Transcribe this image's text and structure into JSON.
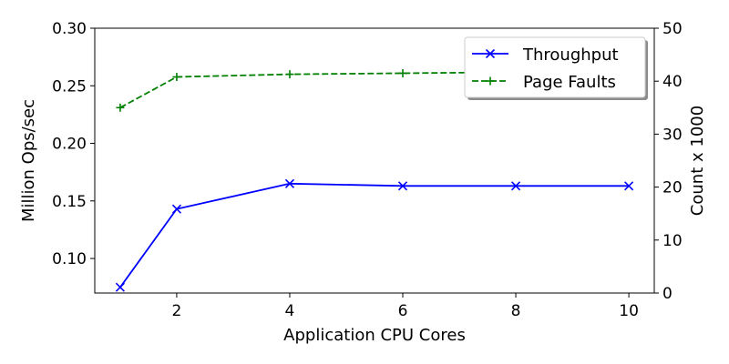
{
  "chart_data": {
    "type": "line",
    "x": [
      1,
      2,
      4,
      6,
      8,
      10
    ],
    "xlabel": "Application CPU Cores",
    "xticks": [
      "2",
      "4",
      "6",
      "8",
      "10"
    ],
    "xlim": [
      0.55,
      10.45
    ],
    "ylabel": "Million Ops/sec",
    "yticks": [
      "0.10",
      "0.15",
      "0.20",
      "0.25",
      "0.30"
    ],
    "ylim": [
      0.07,
      0.3
    ],
    "y2label": "Count x 1000",
    "y2ticks": [
      "0",
      "10",
      "20",
      "30",
      "40",
      "50"
    ],
    "y2lim": [
      0,
      50
    ],
    "grid": false,
    "legend_position": "top-right",
    "series": [
      {
        "name": "Throughput",
        "axis": "left",
        "color": "#0000ff",
        "linestyle": "solid",
        "marker": "x",
        "values": [
          0.075,
          0.143,
          0.165,
          0.163,
          0.163,
          0.163
        ]
      },
      {
        "name": "Page Faults",
        "axis": "right",
        "color": "#008000",
        "linestyle": "dashed",
        "marker": "+",
        "values": [
          35.0,
          40.8,
          41.3,
          41.5,
          41.7,
          41.2
        ]
      }
    ]
  }
}
